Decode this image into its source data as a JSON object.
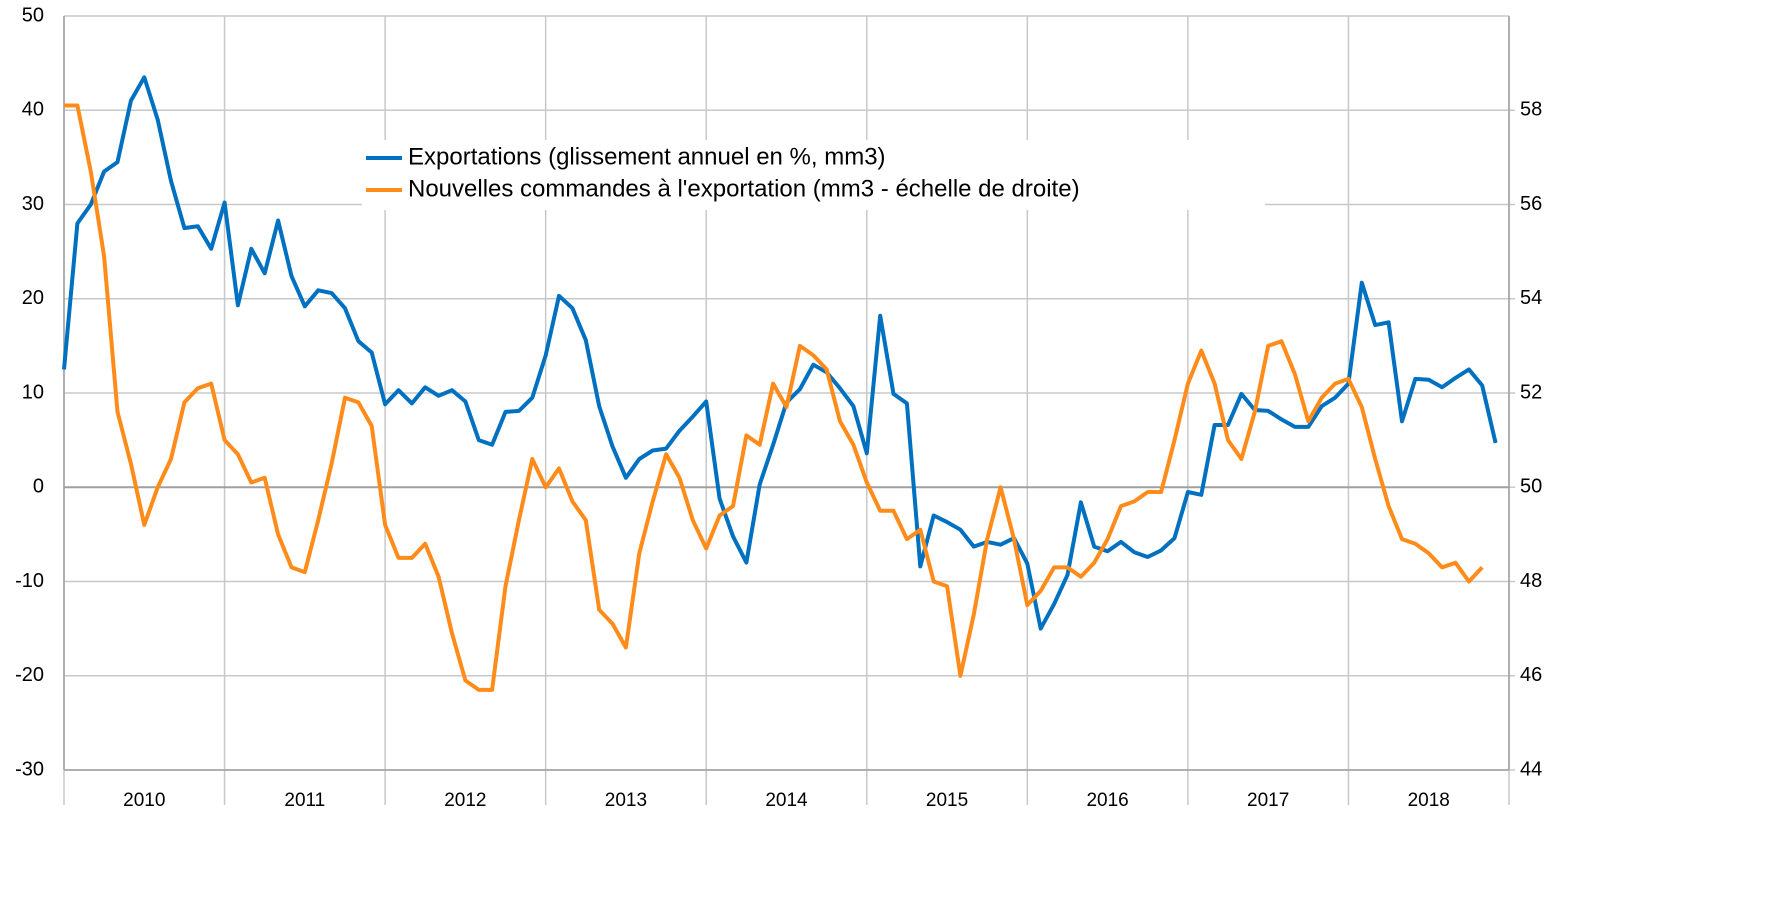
{
  "chart_data": {
    "type": "line",
    "x_labels": [
      "2010",
      "2011",
      "2012",
      "2013",
      "2014",
      "2015",
      "2016",
      "2017",
      "2018"
    ],
    "series": [
      {
        "name": "Exportations (glissement annuel en %, mm3)",
        "color": "#0070c0",
        "axis": "y",
        "values": [
          12.5,
          28,
          30,
          33.5,
          34.5,
          41,
          43.5,
          39,
          32.5,
          27.5,
          27.7,
          25.3,
          30.2,
          19.3,
          25.3,
          22.7,
          28.3,
          22.4,
          19.2,
          20.9,
          20.6,
          19,
          15.5,
          14.3,
          8.8,
          10.3,
          8.9,
          10.6,
          9.7,
          10.3,
          9.1,
          5,
          4.5,
          8,
          8.1,
          9.5,
          14,
          20.3,
          19,
          15.6,
          8.6,
          4.3,
          1,
          3,
          3.9,
          4.1,
          6,
          7.5,
          9.1,
          -1.2,
          -5.2,
          -8,
          0.3,
          4.5,
          9,
          10.4,
          13,
          12.2,
          10.5,
          8.6,
          3.6,
          18.2,
          9.9,
          8.9,
          -8.4,
          -3,
          -3.7,
          -4.5,
          -6.3,
          -5.8,
          -6.1,
          -5.4,
          -8.1,
          -15,
          -12.4,
          -9.3,
          -1.6,
          -6.3,
          -6.8,
          -5.8,
          -6.9,
          -7.4,
          -6.7,
          -5.4,
          -0.5,
          -0.8,
          6.6,
          6.6,
          9.9,
          8.2,
          8.1,
          7.2,
          6.4,
          6.4,
          8.6,
          9.5,
          11,
          21.7,
          17.2,
          17.5,
          7,
          11.5,
          11.4,
          10.6,
          11.6,
          12.5,
          10.8,
          4.7
        ]
      },
      {
        "name": "Nouvelles commandes à l'exportation (mm3 - échelle de droite)",
        "color": "#ff8c1a",
        "axis": "y2",
        "values": [
          58.1,
          58.1,
          56.7,
          54.9,
          51.6,
          50.5,
          49.2,
          50,
          50.6,
          51.8,
          52.1,
          52.2,
          51.0,
          50.7,
          50.1,
          50.2,
          49.0,
          48.3,
          48.2,
          49.3,
          50.5,
          51.9,
          51.8,
          51.3,
          49.2,
          48.5,
          48.5,
          48.8,
          48.1,
          46.9,
          45.9,
          45.7,
          45.7,
          47.9,
          49.3,
          50.6,
          50,
          50.4,
          49.7,
          49.3,
          47.4,
          47.1,
          46.6,
          48.6,
          49.7,
          50.7,
          50.2,
          49.3,
          48.7,
          49.4,
          49.6,
          51.1,
          50.9,
          52.2,
          51.7,
          53,
          52.8,
          52.5,
          51.4,
          50.9,
          50.1,
          49.5,
          49.5,
          48.9,
          49.1,
          48,
          47.9,
          46,
          47.3,
          48.9,
          50,
          48.9,
          47.5,
          47.8,
          48.3,
          48.3,
          48.1,
          48.4,
          48.9,
          49.6,
          49.7,
          49.9,
          49.9,
          51,
          52.2,
          52.9,
          52.2,
          51,
          50.6,
          51.6,
          53,
          53.1,
          52.4,
          51.4,
          51.9,
          52.2,
          52.3,
          51.7,
          50.6,
          49.6,
          48.9,
          48.8,
          48.6,
          48.3,
          48.4,
          48,
          48.3,
          null
        ]
      }
    ],
    "ylim": [
      -30,
      50
    ],
    "yticks": [
      -30,
      -20,
      -10,
      0,
      10,
      20,
      30,
      40,
      50
    ],
    "y2lim": [
      44,
      60
    ],
    "y2ticks": [
      44,
      46,
      48,
      50,
      52,
      54,
      56,
      58
    ],
    "grid": true
  }
}
